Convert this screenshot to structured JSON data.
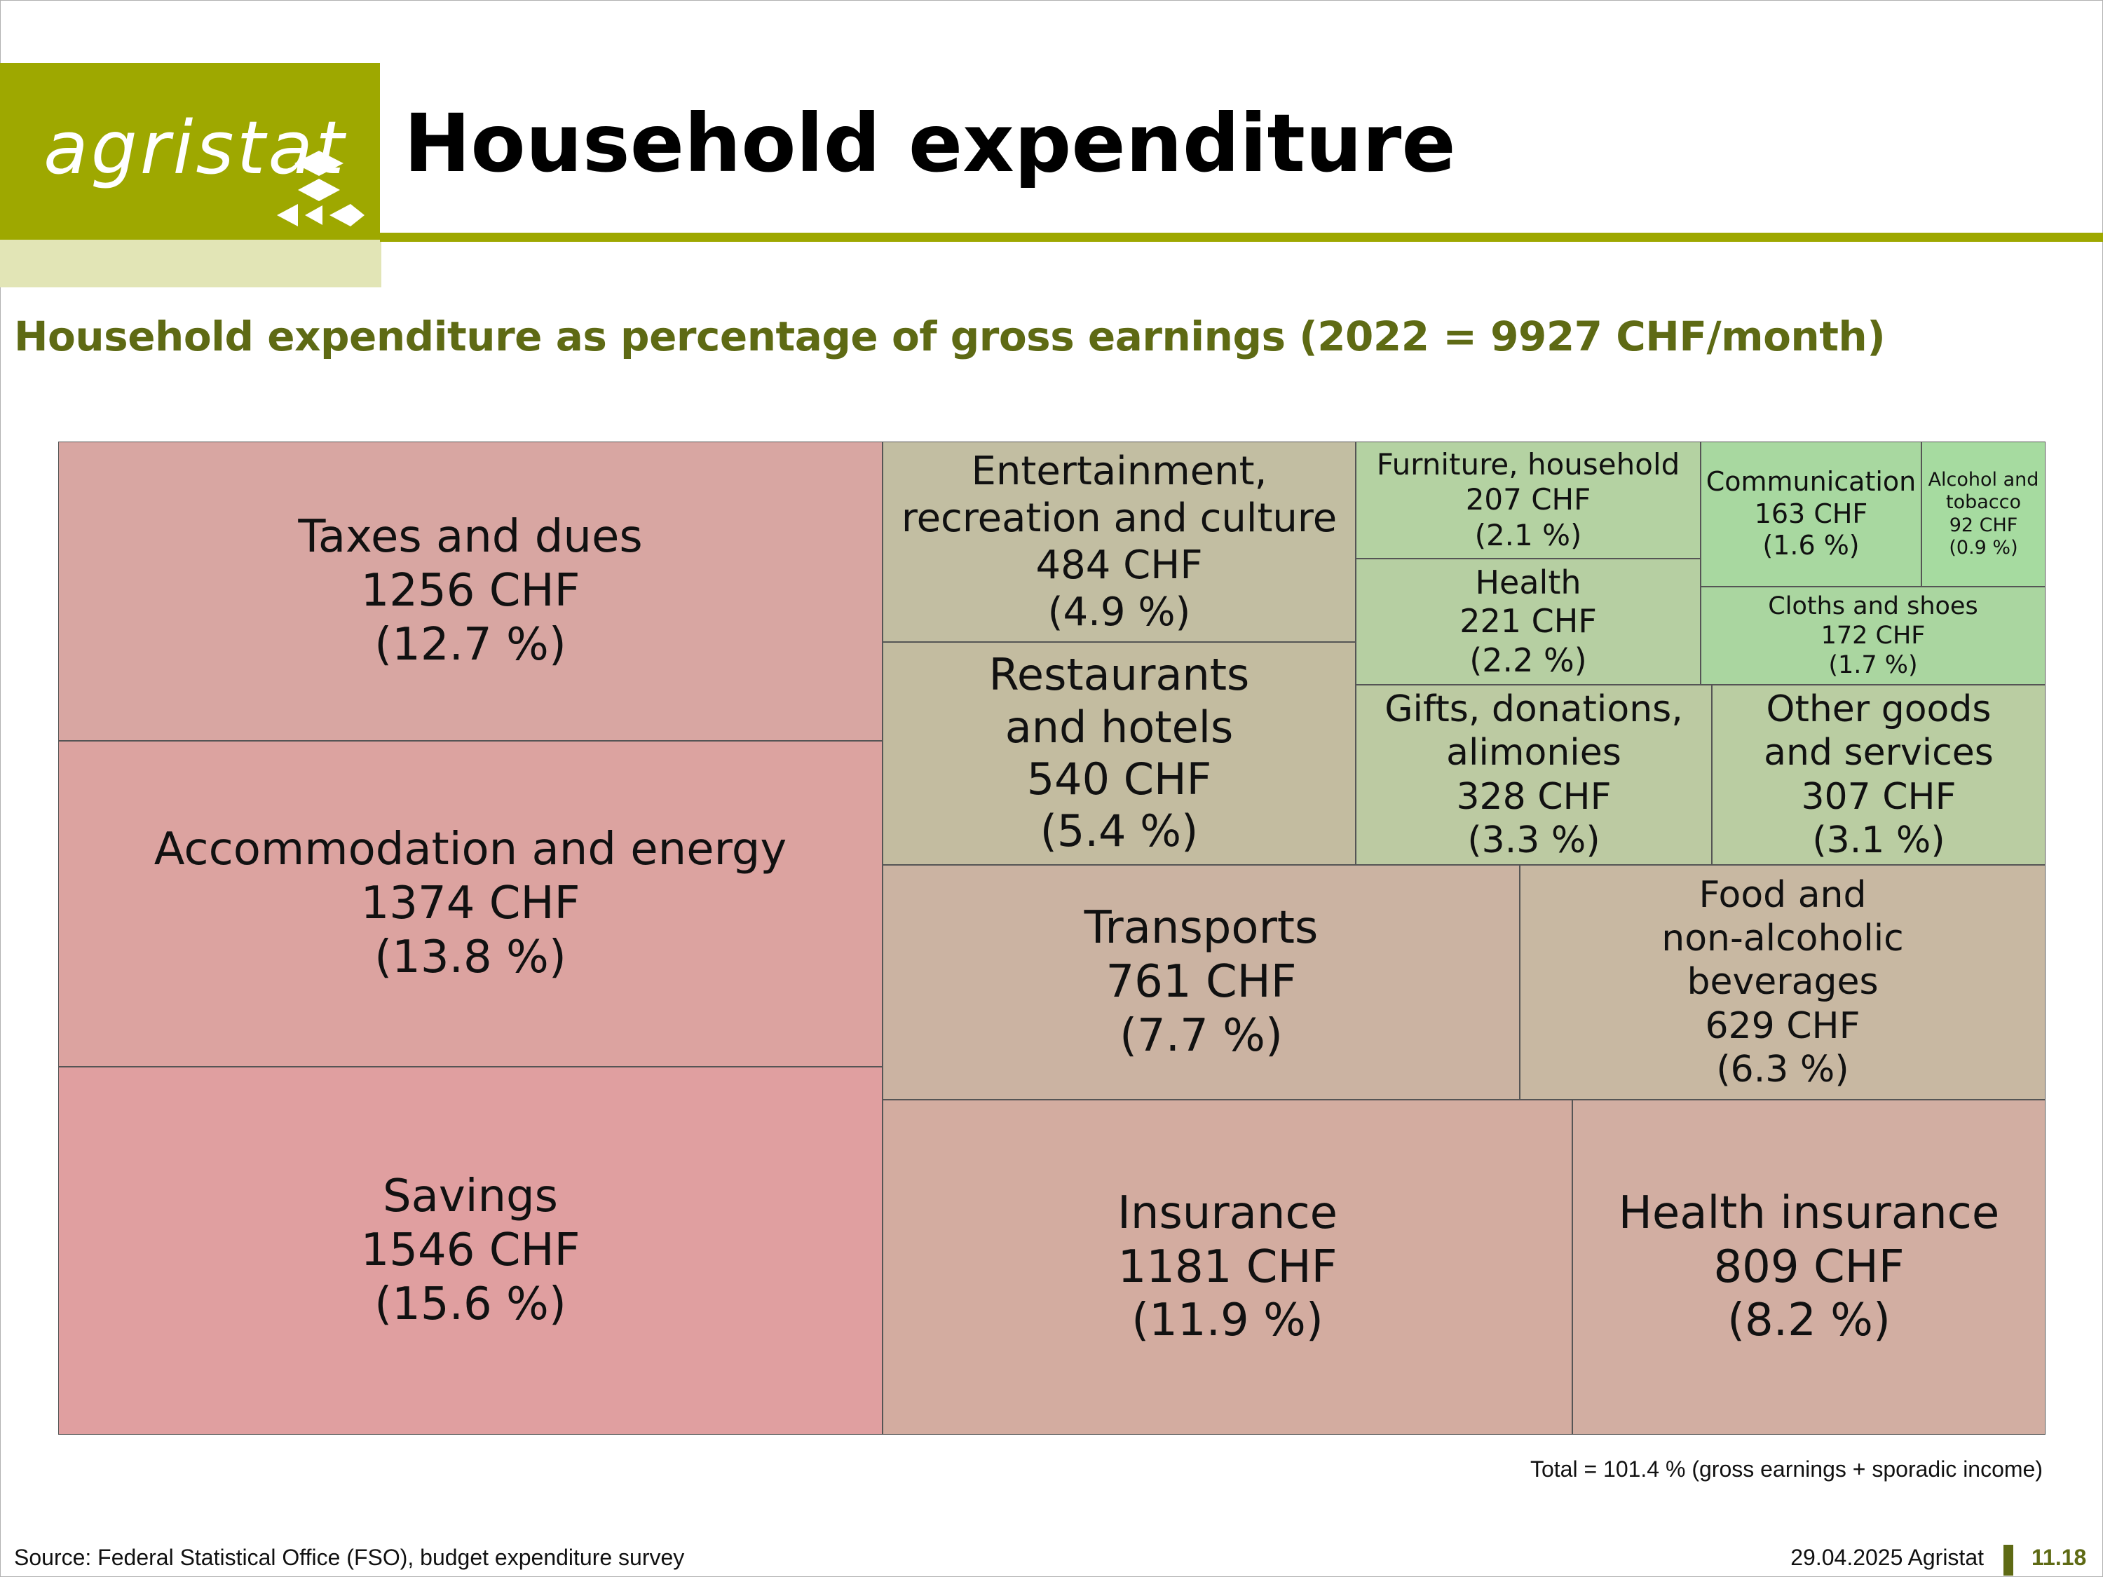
{
  "header": {
    "logo_text": "agristat",
    "title": "Household expenditure",
    "brand_color": "#9ea800"
  },
  "subtitle": "Household expenditure as percentage of gross earnings (2022 = 9927 CHF/month)",
  "chart_data": {
    "type": "treemap",
    "title": "Household expenditure as percentage of gross earnings (2022 = 9927 CHF/month)",
    "unit": "CHF",
    "items": [
      {
        "label": "Taxes and dues",
        "value": 1256,
        "value_text": "1256 CHF",
        "share": 12.7,
        "share_text": "(12.7 %)",
        "color": "#d8a6a2"
      },
      {
        "label": "Accommodation and energy",
        "value": 1374,
        "value_text": "1374 CHF",
        "share": 13.8,
        "share_text": "(13.8 %)",
        "color": "#dca3a0"
      },
      {
        "label": "Savings",
        "value": 1546,
        "value_text": "1546 CHF",
        "share": 15.6,
        "share_text": "(15.6 %)",
        "color": "#e09fa0"
      },
      {
        "label": "Entertainment, recreation and culture",
        "value": 484,
        "value_text": "484 CHF",
        "share": 4.9,
        "share_text": "(4.9 %)",
        "color": "#c2bea2"
      },
      {
        "label": "Restaurants and hotels",
        "value": 540,
        "value_text": "540 CHF",
        "share": 5.4,
        "share_text": "(5.4 %)",
        "color": "#c3bca0"
      },
      {
        "label": "Furniture, household",
        "value": 207,
        "value_text": "207 CHF",
        "share": 2.1,
        "share_text": "(2.1 %)",
        "color": "#b4d2a2"
      },
      {
        "label": "Health",
        "value": 221,
        "value_text": "221 CHF",
        "share": 2.2,
        "share_text": "(2.2 %)",
        "color": "#b6cfa2"
      },
      {
        "label": "Communication",
        "value": 163,
        "value_text": "163 CHF",
        "share": 1.6,
        "share_text": "(1.6 %)",
        "color": "#a8d8a0"
      },
      {
        "label": "Alcohol and tobacco",
        "value": 92,
        "value_text": "92 CHF",
        "share": 0.9,
        "share_text": "(0.9 %)",
        "color": "#a6dba0"
      },
      {
        "label": "Cloths and shoes",
        "value": 172,
        "value_text": "172 CHF",
        "share": 1.7,
        "share_text": "(1.7 %)",
        "color": "#aad6a0"
      },
      {
        "label": "Gifts, donations, alimonies",
        "value": 328,
        "value_text": "328 CHF",
        "share": 3.3,
        "share_text": "(3.3 %)",
        "color": "#bccaa2"
      },
      {
        "label": "Other goods and services",
        "value": 307,
        "value_text": "307 CHF",
        "share": 3.1,
        "share_text": "(3.1 %)",
        "color": "#bacda2"
      },
      {
        "label": "Transports",
        "value": 761,
        "value_text": "761 CHF",
        "share": 7.7,
        "share_text": "(7.7 %)",
        "color": "#cbb3a2"
      },
      {
        "label": "Food and non-alcoholic beverages",
        "value": 629,
        "value_text": "629 CHF",
        "share": 6.3,
        "share_text": "(6.3 %)",
        "color": "#c8b8a2"
      },
      {
        "label": "Insurance",
        "value": 1181,
        "value_text": "1181 CHF",
        "share": 11.9,
        "share_text": "(11.9 %)",
        "color": "#d3aca0"
      },
      {
        "label": "Health insurance",
        "value": 809,
        "value_text": "809 CHF",
        "share": 8.2,
        "share_text": "(8.2 %)",
        "color": "#d2aea2"
      }
    ]
  },
  "note": "Total = 101.4 % (gross earnings + sporadic income)",
  "footer": {
    "source": "Source: Federal Statistical Office (FSO), budget expenditure survey",
    "date": "29.04.2025 Agristat",
    "page": "11.18"
  }
}
